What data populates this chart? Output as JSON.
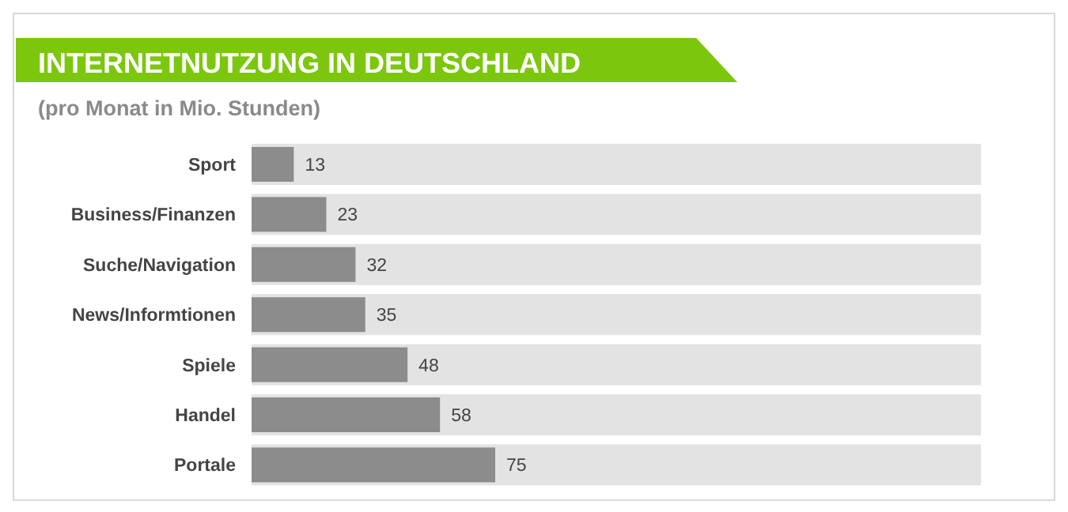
{
  "chart_data": {
    "type": "bar",
    "orientation": "horizontal",
    "title": "INTERNETNUTZUNG IN DEUTSCHLAND",
    "subtitle": "(pro Monat in Mio. Stunden)",
    "categories": [
      "Sport",
      "Business/Finanzen",
      "Suche/Navigation",
      "News/Informtionen",
      "Spiele",
      "Handel",
      "Portale"
    ],
    "values": [
      13,
      23,
      32,
      35,
      48,
      58,
      75
    ],
    "color": "#8c8c8c",
    "data_labels": true
  }
}
